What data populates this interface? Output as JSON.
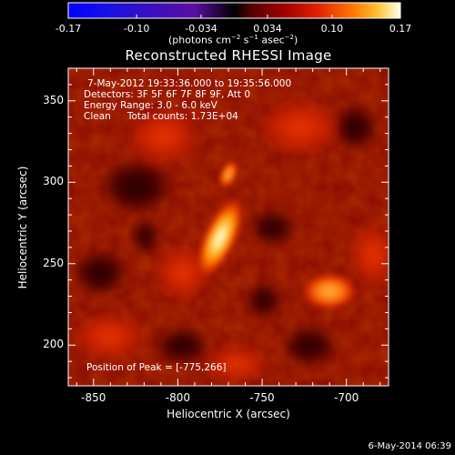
{
  "colorbar": {
    "ticks": [
      "-0.17",
      "-0.10",
      "-0.034",
      "0.034",
      "0.10",
      "0.17"
    ],
    "tick_values": [
      -0.17,
      -0.1,
      -0.034,
      0.034,
      0.1,
      0.17
    ],
    "range": [
      -0.17,
      0.17
    ],
    "units_label": "(photons cm^-2 s^-1 asec^-2)",
    "units_prefix": "(photons cm",
    "units_exp1": "−2",
    "units_mid1": " s",
    "units_exp2": "−1",
    "units_mid2": " asec",
    "units_exp3": "−2",
    "units_suffix": ")",
    "colormap": "rhessi-bipolar (blue-purple negative, red-yellow-white positive)"
  },
  "title": "Reconstructed RHESSI Image",
  "info": {
    "line1": "7-May-2012 19:33:36.000 to 19:35:56.000",
    "line2": "Detectors: 3F 5F 6F 7F 8F 9F, Att 0",
    "line3": "Energy Range: 3.0 - 6.0 keV",
    "line4_method": "Clean",
    "line4_counts": "Total counts: 1.73E+04"
  },
  "peak_label": "Position of Peak = [-775,266]",
  "axes": {
    "xlabel": "Heliocentric X (arcsec)",
    "ylabel": "Heliocentric Y (arcsec)",
    "xticks": [
      "-850",
      "-800",
      "-750",
      "-700"
    ],
    "xtick_values": [
      -850,
      -800,
      -750,
      -700
    ],
    "yticks": [
      "200",
      "250",
      "300",
      "350"
    ],
    "ytick_values": [
      200,
      250,
      300,
      350
    ],
    "xlim": [
      -865,
      -675
    ],
    "ylim": [
      175,
      370
    ]
  },
  "footer_timestamp": "6-May-2014 06:39",
  "chart_data": {
    "type": "heatmap",
    "title": "Reconstructed RHESSI Image",
    "xlabel": "Heliocentric X (arcsec)",
    "ylabel": "Heliocentric Y (arcsec)",
    "xlim": [
      -865,
      -675
    ],
    "ylim": [
      175,
      370
    ],
    "sources": [
      {
        "x": -775,
        "y": 266,
        "intensity": 0.17
      },
      {
        "x": -770,
        "y": 305,
        "intensity": 0.09
      },
      {
        "x": -710,
        "y": 233,
        "intensity": 0.1
      }
    ]
  },
  "colors": {
    "background": "#000000",
    "text": "#ffffff"
  }
}
